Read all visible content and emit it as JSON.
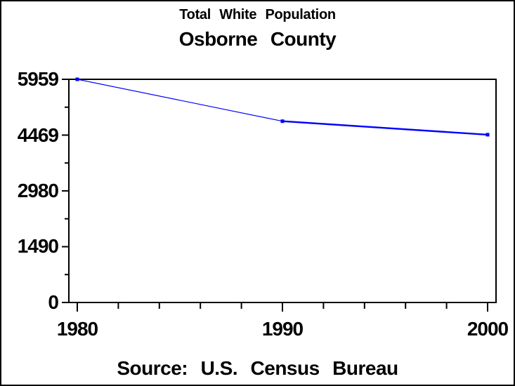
{
  "page": {
    "background": "#ffffff",
    "border_color": "#000000",
    "text_color": "#000000"
  },
  "chart_data": {
    "type": "line",
    "title": "Total White Population",
    "subtitle": "Osborne County",
    "footnote": "Source: U.S. Census Bureau",
    "xlabel": "",
    "ylabel": "",
    "x": [
      1980,
      1990,
      2000
    ],
    "values": [
      5959,
      4840,
      4480
    ],
    "series": [
      {
        "name": "Total White Population",
        "values": [
          5959,
          4840,
          4480
        ]
      }
    ],
    "line_color": "#0000ff",
    "marker": "filled-square",
    "x_tick_labels": [
      "1980",
      "1990",
      "2000"
    ],
    "x_ticks_minor": [
      1982,
      1984,
      1986,
      1988,
      1992,
      1994,
      1996,
      1998
    ],
    "y_tick_values": [
      0,
      1490,
      2980,
      4469,
      5959
    ],
    "y_tick_labels": [
      "0",
      "1490",
      "2980",
      "4469",
      "5959"
    ],
    "y_ticks_minor": [
      745,
      2235,
      3725,
      5214
    ],
    "xlim": [
      1980,
      2000
    ],
    "ylim": [
      0,
      5959
    ],
    "grid": false,
    "legend": false,
    "frame": true
  }
}
